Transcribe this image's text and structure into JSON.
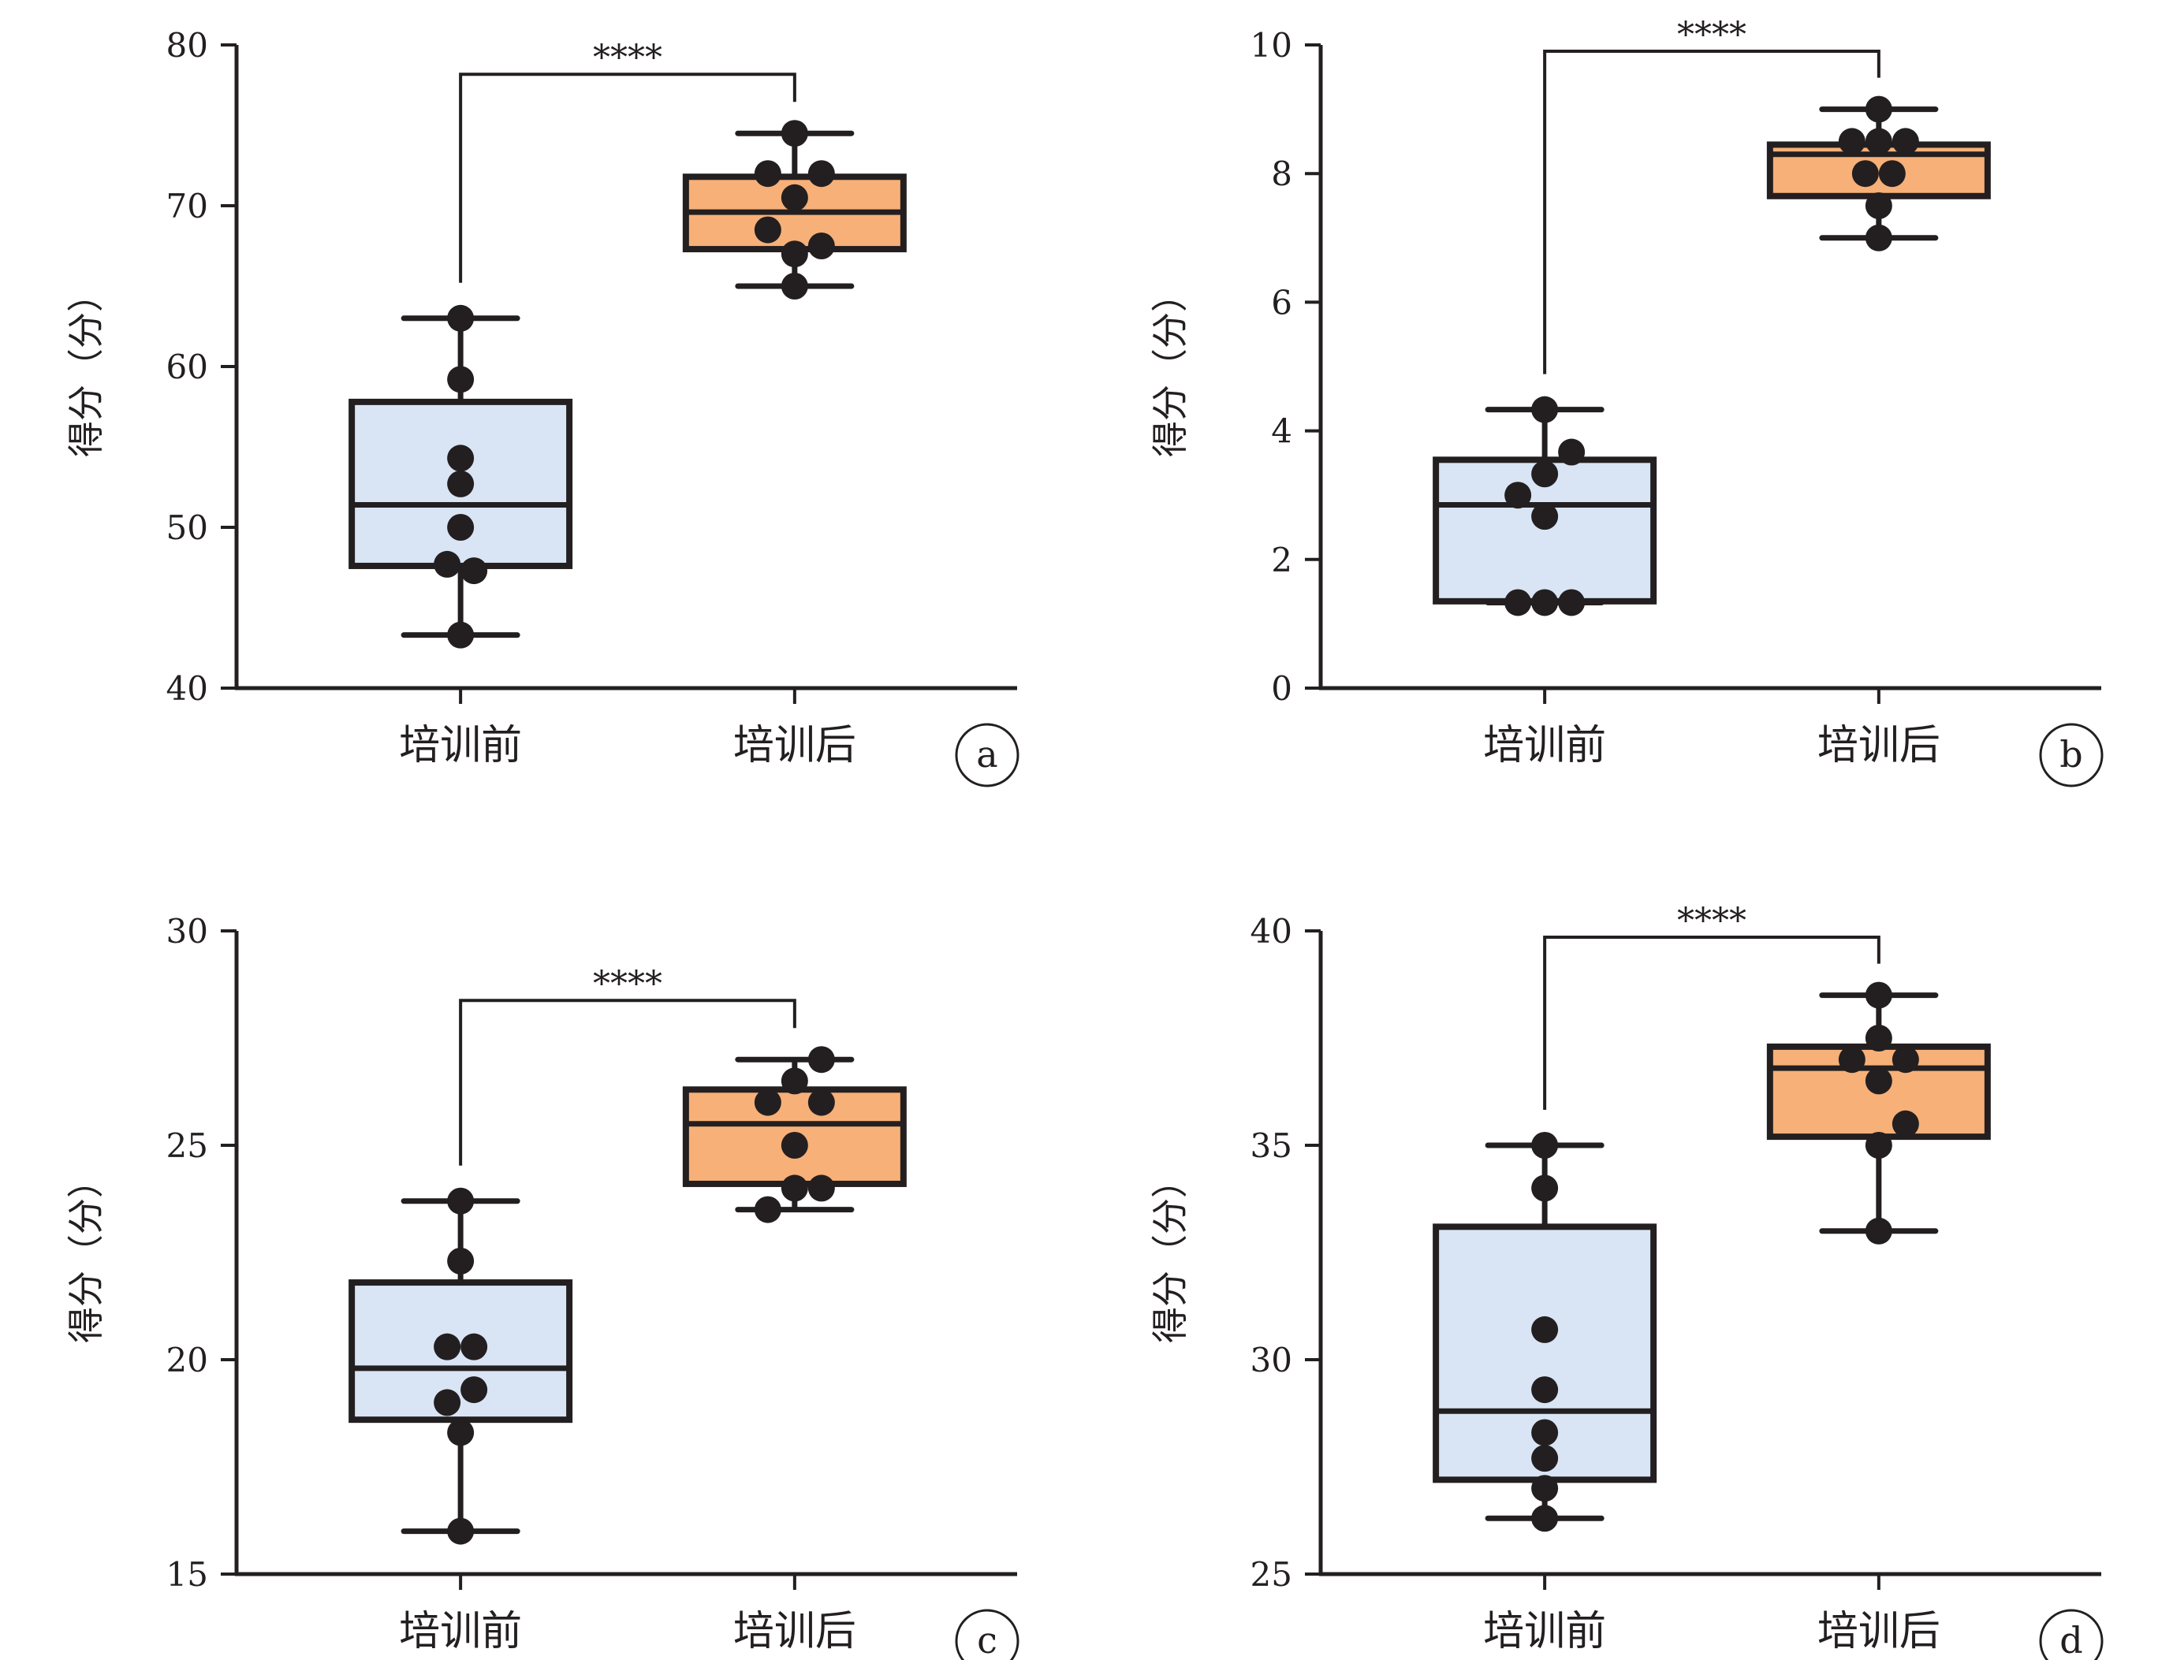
{
  "figure": {
    "colors": {
      "before_fill": "#d9e5f4",
      "after_fill": "#f7b078",
      "ink": "#231f20"
    }
  },
  "chart_data": [
    {
      "type": "box",
      "panel_label": "a",
      "ylabel": "得分（分）",
      "ylim": [
        40,
        80
      ],
      "yticks": [
        40,
        50,
        60,
        70,
        80
      ],
      "categories": [
        "培训前",
        "培训后"
      ],
      "significance": "****",
      "groups": [
        {
          "name": "培训前",
          "whisker_low": 43.3,
          "q1": 47.6,
          "median": 51.4,
          "q3": 57.8,
          "whisker_high": 63.0,
          "points": [
            63.0,
            59.2,
            54.3,
            52.7,
            50.0,
            47.7,
            47.3,
            43.3
          ],
          "jitter": [
            0,
            0,
            0,
            0,
            0,
            -0.5,
            0.5,
            0
          ]
        },
        {
          "name": "培训后",
          "whisker_low": 65.0,
          "q1": 67.3,
          "median": 69.6,
          "q3": 71.8,
          "whisker_high": 74.5,
          "points": [
            74.5,
            72.0,
            72.0,
            70.5,
            68.5,
            67.5,
            67.0,
            65.0
          ],
          "jitter": [
            0,
            -1,
            1,
            0,
            -1,
            1,
            0,
            0
          ]
        }
      ]
    },
    {
      "type": "box",
      "panel_label": "b",
      "ylabel": "得分（分）",
      "ylim": [
        0,
        10
      ],
      "yticks": [
        0,
        2,
        4,
        6,
        8,
        10
      ],
      "categories": [
        "培训前",
        "培训后"
      ],
      "significance": "****",
      "groups": [
        {
          "name": "培训前",
          "whisker_low": 1.33,
          "q1": 1.35,
          "median": 2.85,
          "q3": 3.55,
          "whisker_high": 4.33,
          "points": [
            4.33,
            3.67,
            3.33,
            3.0,
            2.67,
            1.33,
            1.33,
            1.33
          ],
          "jitter": [
            0,
            1,
            0,
            -1,
            0,
            -1,
            0,
            1
          ]
        },
        {
          "name": "培训后",
          "whisker_low": 7.0,
          "q1": 7.65,
          "median": 8.3,
          "q3": 8.45,
          "whisker_high": 9.0,
          "points": [
            9.0,
            8.5,
            8.5,
            8.5,
            8.0,
            8.0,
            7.5,
            7.0
          ],
          "jitter": [
            0,
            -1,
            0,
            1,
            -0.5,
            0.5,
            0,
            0
          ]
        }
      ]
    },
    {
      "type": "box",
      "panel_label": "c",
      "ylabel": "得分（分）",
      "ylim": [
        15,
        30
      ],
      "yticks": [
        15,
        20,
        25,
        30
      ],
      "categories": [
        "培训前",
        "培训后"
      ],
      "significance": "****",
      "groups": [
        {
          "name": "培训前",
          "whisker_low": 16.0,
          "q1": 18.6,
          "median": 19.8,
          "q3": 21.8,
          "whisker_high": 23.7,
          "points": [
            23.7,
            22.3,
            20.3,
            20.3,
            19.3,
            19.0,
            18.3,
            16.0
          ],
          "jitter": [
            0,
            0,
            -0.5,
            0.5,
            0.5,
            -0.5,
            0,
            0
          ]
        },
        {
          "name": "培训后",
          "whisker_low": 23.5,
          "q1": 24.1,
          "median": 25.5,
          "q3": 26.3,
          "whisker_high": 27.0,
          "points": [
            27.0,
            26.5,
            26.0,
            26.0,
            25.0,
            24.0,
            24.0,
            23.5
          ],
          "jitter": [
            1,
            0,
            -1,
            1,
            0,
            0,
            1,
            -1
          ]
        }
      ]
    },
    {
      "type": "box",
      "panel_label": "d",
      "ylabel": "得分（分）",
      "ylim": [
        25,
        40
      ],
      "yticks": [
        25,
        30,
        35,
        40
      ],
      "categories": [
        "培训前",
        "培训后"
      ],
      "significance": "****",
      "groups": [
        {
          "name": "培训前",
          "whisker_low": 26.3,
          "q1": 27.2,
          "median": 28.8,
          "q3": 33.1,
          "whisker_high": 35.0,
          "points": [
            35.0,
            34.0,
            30.7,
            29.3,
            28.3,
            27.7,
            27.0,
            26.3
          ],
          "jitter": [
            0,
            0,
            0,
            0,
            0,
            0,
            0,
            0
          ]
        },
        {
          "name": "培训后",
          "whisker_low": 33.0,
          "q1": 35.2,
          "median": 36.8,
          "q3": 37.3,
          "whisker_high": 38.5,
          "points": [
            38.5,
            37.5,
            37.0,
            37.0,
            36.5,
            35.5,
            35.0,
            33.0
          ],
          "jitter": [
            0,
            0,
            -1,
            1,
            0,
            1,
            0,
            0
          ]
        }
      ]
    }
  ]
}
